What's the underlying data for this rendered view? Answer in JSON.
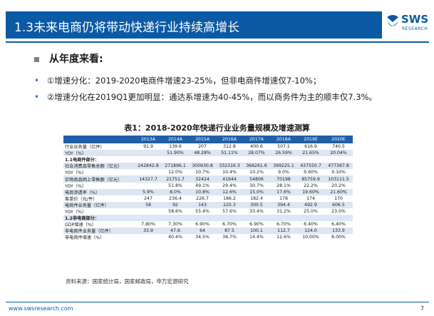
{
  "slide": {
    "title": "1.3未来电商仍将带动快递行业持续高增长",
    "logo_text": "SWS",
    "logo_sub": "RESEARCH",
    "heading": "从年度来看:",
    "bullets": [
      "①增速分化：2019-2020电商件增速23-25%，但非电商件增速仅7-10%；",
      "②增速分化在2019Q1更加明显：通达系增速为40-45%，而以商务件为主的顺丰仅7.3%。"
    ],
    "table_title": "表1：2018-2020年快递行业业务量规模及增速测算",
    "source": "资料来源：国家统计局，国家邮政局，申万宏源研究",
    "footer_url": "www.swsresearch.com",
    "page_number": "7",
    "accent_color": "#0b5aa6"
  },
  "table": {
    "headers": [
      "",
      "2013A",
      "2014A",
      "2015A",
      "2016A",
      "2017A",
      "2018A",
      "2019E",
      "2020E"
    ],
    "rows": [
      {
        "cells": [
          "行业业务量（亿件）",
          "91.9",
          "139.6",
          "207",
          "312.8",
          "400.6",
          "507.1",
          "616.9",
          "740.5"
        ]
      },
      {
        "cells": [
          "YOY（%）",
          "",
          "51.90%",
          "48.28%",
          "51.11%",
          "28.07%",
          "26.59%",
          "21.65%",
          "20.04%"
        ]
      },
      {
        "cells": [
          "1.1电商件部分：",
          "",
          "",
          "",
          "",
          "",
          "",
          "",
          ""
        ]
      },
      {
        "cells": [
          "社会消费品零售总额（亿元）",
          "242842.8",
          "271896.1",
          "300930.8",
          "332316.3",
          "366261.6",
          "399225.1",
          "437550.7",
          "477367.8"
        ]
      },
      {
        "cells": [
          "YOY（%）",
          "",
          "12.0%",
          "10.7%",
          "10.4%",
          "10.2%",
          "9.0%",
          "9.60%",
          "9.10%"
        ]
      },
      {
        "cells": [
          "实物商品网上零售额（亿元）",
          "14327.7",
          "21751.7",
          "32424",
          "41944",
          "54806",
          "70198",
          "85759.9",
          "103111.5"
        ]
      },
      {
        "cells": [
          "YOY（%）",
          "",
          "51.8%",
          "49.1%",
          "29.4%",
          "30.7%",
          "28.1%",
          "22.2%",
          "20.2%"
        ]
      },
      {
        "cells": [
          "电商渗透率（%）",
          "5.9%",
          "8.0%",
          "10.8%",
          "12.6%",
          "15.0%",
          "17.6%",
          "19.60%",
          "21.60%"
        ]
      },
      {
        "cells": [
          "客单价（元/件）",
          "247",
          "236.4",
          "226.7",
          "186.2",
          "182.4",
          "178",
          "174",
          "170"
        ]
      },
      {
        "cells": [
          "电商件业务量（亿件）",
          "58",
          "92",
          "143",
          "225.3",
          "300.5",
          "394.4",
          "492.9",
          "606.5"
        ]
      },
      {
        "cells": [
          "YOY（%）",
          "",
          "58.6%",
          "55.4%",
          "57.6%",
          "33.4%",
          "31.2%",
          "25.0%",
          "23.0%"
        ]
      },
      {
        "cells": [
          "1.2非电商部分：",
          "",
          "",
          "",
          "",
          "",
          "",
          "",
          ""
        ]
      },
      {
        "cells": [
          "GDP增速（%）",
          "7.80%",
          "7.30%",
          "6.90%",
          "6.70%",
          "6.90%",
          "6.70%",
          "6.40%",
          "6.40%"
        ]
      },
      {
        "cells": [
          "非电商件业务量（亿件）",
          "33.9",
          "47.6",
          "64",
          "87.5",
          "100.1",
          "112.7",
          "124.0",
          "133.9"
        ]
      },
      {
        "cells": [
          "非电商件增速（%）",
          "",
          "40.4%",
          "34.5%",
          "36.7%",
          "14.4%",
          "12.6%",
          "10.00%",
          "8.00%"
        ]
      }
    ]
  }
}
